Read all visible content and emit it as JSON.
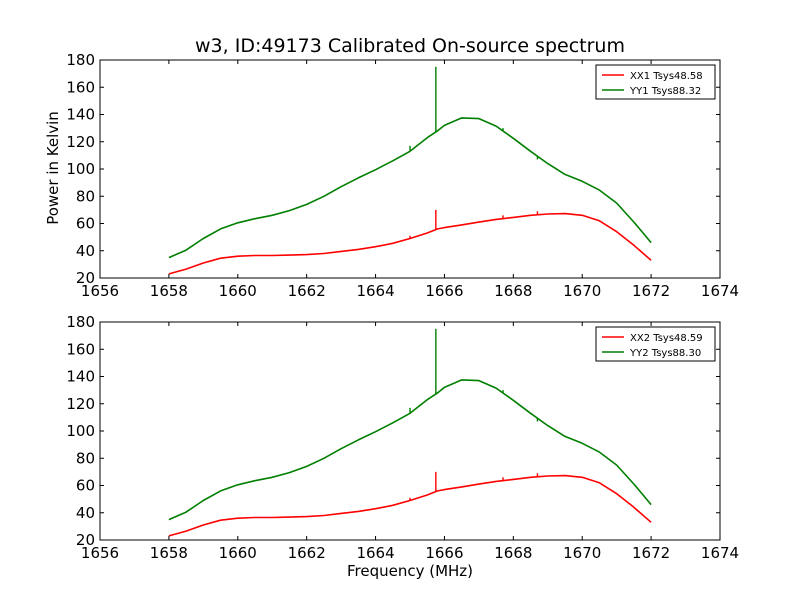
{
  "title": "w3, ID:49173 Calibrated On-source spectrum",
  "xlabel": "Frequency (MHz)",
  "ylabel": "Power in Kelvin",
  "colors": {
    "xx": "#ff0000",
    "yy": "#007f00",
    "axes": "#000000",
    "background": "#ffffff"
  },
  "chart_data": [
    {
      "type": "line",
      "title": "w3, ID:49173 Calibrated On-source spectrum",
      "xlabel": "",
      "ylabel": "Power in Kelvin",
      "xlim": [
        1656,
        1674
      ],
      "ylim": [
        20,
        180
      ],
      "xticks": [
        1656,
        1658,
        1660,
        1662,
        1664,
        1666,
        1668,
        1670,
        1672,
        1674
      ],
      "yticks": [
        20,
        40,
        60,
        80,
        100,
        120,
        140,
        160,
        180
      ],
      "grid": false,
      "legend_position": "top-right",
      "series": [
        {
          "name": "XX1 Tsys48.58",
          "color": "#ff0000",
          "x": [
            1658.0,
            1658.5,
            1659.0,
            1659.5,
            1660.0,
            1660.5,
            1661.0,
            1661.5,
            1662.0,
            1662.5,
            1663.0,
            1663.5,
            1664.0,
            1664.5,
            1665.0,
            1665.5,
            1665.8,
            1666.0,
            1666.5,
            1667.0,
            1667.5,
            1668.0,
            1668.5,
            1669.0,
            1669.5,
            1670.0,
            1670.5,
            1671.0,
            1671.5,
            1672.0
          ],
          "y": [
            23,
            26.5,
            31,
            34.5,
            36,
            36.5,
            36.5,
            36.8,
            37.2,
            38,
            39.5,
            41,
            43,
            45.5,
            49,
            53,
            56,
            57,
            59,
            61,
            63,
            64.5,
            66,
            67,
            67.3,
            66,
            62,
            54,
            44,
            33
          ],
          "spikes": [
            {
              "x": 1665.75,
              "y": 70
            },
            {
              "x": 1667.7,
              "y": 66
            },
            {
              "x": 1668.7,
              "y": 69
            },
            {
              "x": 1665.0,
              "y": 51
            }
          ]
        },
        {
          "name": "YY1 Tsys88.32",
          "color": "#007f00",
          "x": [
            1658.0,
            1658.5,
            1659.0,
            1659.5,
            1660.0,
            1660.5,
            1661.0,
            1661.5,
            1662.0,
            1662.5,
            1663.0,
            1663.5,
            1664.0,
            1664.5,
            1665.0,
            1665.5,
            1665.8,
            1666.0,
            1666.5,
            1667.0,
            1667.5,
            1668.0,
            1668.5,
            1669.0,
            1669.5,
            1670.0,
            1670.5,
            1671.0,
            1671.5,
            1672.0
          ],
          "y": [
            35,
            40.5,
            49,
            56,
            60.5,
            63.5,
            66,
            69.5,
            74,
            80,
            87,
            93.5,
            99.5,
            106,
            113,
            123,
            128,
            132,
            137.5,
            137,
            131.5,
            122.5,
            113,
            104,
            96,
            91,
            84.5,
            75,
            61,
            46
          ],
          "spikes": [
            {
              "x": 1665.75,
              "y": 175
            },
            {
              "x": 1667.7,
              "y": 130
            },
            {
              "x": 1668.7,
              "y": 107
            },
            {
              "x": 1665.0,
              "y": 117
            }
          ]
        }
      ]
    },
    {
      "type": "line",
      "title": "",
      "xlabel": "Frequency (MHz)",
      "ylabel": "",
      "xlim": [
        1656,
        1674
      ],
      "ylim": [
        20,
        180
      ],
      "xticks": [
        1656,
        1658,
        1660,
        1662,
        1664,
        1666,
        1668,
        1670,
        1672,
        1674
      ],
      "yticks": [
        20,
        40,
        60,
        80,
        100,
        120,
        140,
        160,
        180
      ],
      "grid": false,
      "legend_position": "top-right",
      "series": [
        {
          "name": "XX2 Tsys48.59",
          "color": "#ff0000",
          "x": [
            1658.0,
            1658.5,
            1659.0,
            1659.5,
            1660.0,
            1660.5,
            1661.0,
            1661.5,
            1662.0,
            1662.5,
            1663.0,
            1663.5,
            1664.0,
            1664.5,
            1665.0,
            1665.5,
            1665.8,
            1666.0,
            1666.5,
            1667.0,
            1667.5,
            1668.0,
            1668.5,
            1669.0,
            1669.5,
            1670.0,
            1670.5,
            1671.0,
            1671.5,
            1672.0
          ],
          "y": [
            23,
            26.5,
            31,
            34.5,
            36,
            36.5,
            36.5,
            36.8,
            37.2,
            38,
            39.5,
            41,
            43,
            45.5,
            49,
            53,
            56,
            57,
            59,
            61,
            63,
            64.5,
            66,
            67,
            67.3,
            66,
            62,
            54,
            44,
            33
          ],
          "spikes": [
            {
              "x": 1665.75,
              "y": 70
            },
            {
              "x": 1667.7,
              "y": 66
            },
            {
              "x": 1668.7,
              "y": 69
            },
            {
              "x": 1665.0,
              "y": 51
            }
          ]
        },
        {
          "name": "YY2 Tsys88.30",
          "color": "#007f00",
          "x": [
            1658.0,
            1658.5,
            1659.0,
            1659.5,
            1660.0,
            1660.5,
            1661.0,
            1661.5,
            1662.0,
            1662.5,
            1663.0,
            1663.5,
            1664.0,
            1664.5,
            1665.0,
            1665.5,
            1665.8,
            1666.0,
            1666.5,
            1667.0,
            1667.5,
            1668.0,
            1668.5,
            1669.0,
            1669.5,
            1670.0,
            1670.5,
            1671.0,
            1671.5,
            1672.0
          ],
          "y": [
            35,
            40.5,
            49,
            56,
            60.5,
            63.5,
            66,
            69.5,
            74,
            80,
            87,
            93.5,
            99.5,
            106,
            113,
            123,
            128,
            132,
            137.5,
            137,
            131.5,
            122.5,
            113,
            104,
            96,
            91,
            84.5,
            75,
            61,
            46
          ],
          "spikes": [
            {
              "x": 1665.75,
              "y": 175
            },
            {
              "x": 1667.7,
              "y": 130
            },
            {
              "x": 1668.7,
              "y": 107
            },
            {
              "x": 1665.0,
              "y": 117
            }
          ]
        }
      ]
    }
  ]
}
